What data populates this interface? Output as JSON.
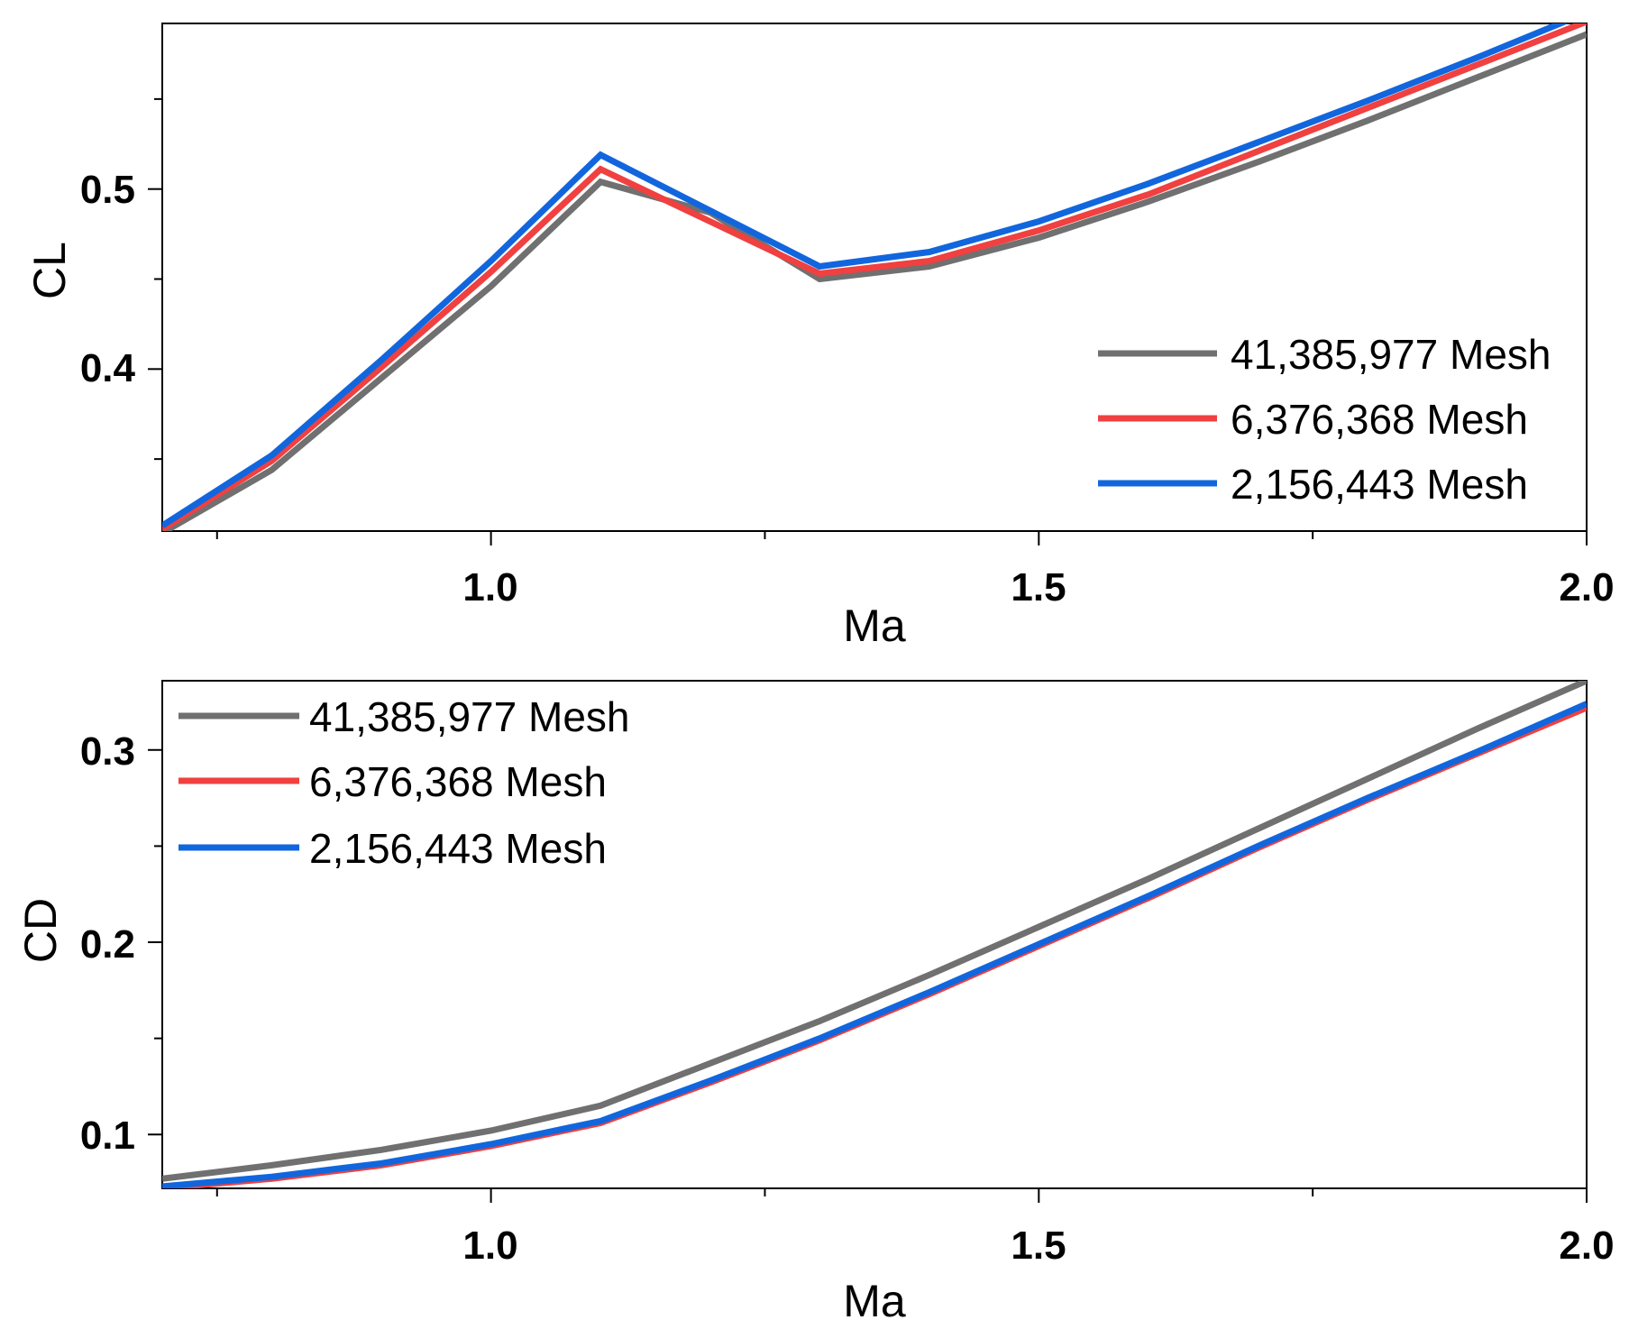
{
  "chart_data": [
    {
      "type": "line",
      "xlabel": "Ma",
      "ylabel": "CL",
      "xlim": [
        0.7,
        2.0
      ],
      "ylim": [
        0.31,
        0.592
      ],
      "x_ticks_major": [
        1.0,
        1.5,
        2.0
      ],
      "x_tick_labels": [
        "1.0",
        "1.5",
        "2.0"
      ],
      "x_ticks_minor": [
        0.75,
        1.25,
        1.75
      ],
      "y_ticks_major": [
        0.4,
        0.5
      ],
      "y_tick_labels": [
        "0.4",
        "0.5"
      ],
      "y_ticks_minor": [
        0.35,
        0.45,
        0.55
      ],
      "legend_position": "bottom-right",
      "grid": false,
      "x": [
        0.7,
        0.8,
        0.9,
        1.0,
        1.1,
        1.2,
        1.3,
        1.4,
        1.5,
        1.6,
        1.7,
        1.8,
        1.9,
        2.0
      ],
      "series": [
        {
          "name": "41,385,977 Mesh",
          "color": "#707070",
          "values": [
            0.309,
            0.344,
            0.395,
            0.446,
            0.504,
            0.487,
            0.45,
            0.457,
            0.473,
            0.493,
            0.515,
            0.538,
            0.562,
            0.586
          ]
        },
        {
          "name": "6,376,368 Mesh",
          "color": "#f04040",
          "values": [
            0.311,
            0.349,
            0.401,
            0.454,
            0.511,
            0.482,
            0.453,
            0.46,
            0.477,
            0.497,
            0.521,
            0.545,
            0.569,
            0.593
          ]
        },
        {
          "name": "2,156,443 Mesh",
          "color": "#1166dd",
          "values": [
            0.313,
            0.352,
            0.405,
            0.46,
            0.519,
            0.488,
            0.457,
            0.465,
            0.482,
            0.503,
            0.526,
            0.549,
            0.573,
            0.598
          ]
        }
      ]
    },
    {
      "type": "line",
      "xlabel": "Ma",
      "ylabel": "CD",
      "xlim": [
        0.7,
        2.0
      ],
      "ylim": [
        0.072,
        0.336
      ],
      "x_ticks_major": [
        1.0,
        1.5,
        2.0
      ],
      "x_tick_labels": [
        "1.0",
        "1.5",
        "2.0"
      ],
      "x_ticks_minor": [
        0.75,
        1.25,
        1.75
      ],
      "y_ticks_major": [
        0.1,
        0.2,
        0.3
      ],
      "y_tick_labels": [
        "0.1",
        "0.2",
        "0.3"
      ],
      "y_ticks_minor": [
        0.15,
        0.25
      ],
      "legend_position": "top-left",
      "grid": false,
      "x": [
        0.7,
        0.8,
        0.9,
        1.0,
        1.1,
        1.2,
        1.3,
        1.4,
        1.5,
        1.6,
        1.7,
        1.8,
        1.9,
        2.0
      ],
      "series": [
        {
          "name": "41,385,977 Mesh",
          "color": "#707070",
          "values": [
            0.077,
            0.084,
            0.092,
            0.102,
            0.115,
            0.137,
            0.159,
            0.183,
            0.208,
            0.233,
            0.259,
            0.285,
            0.311,
            0.336
          ]
        },
        {
          "name": "6,376,368 Mesh",
          "color": "#f04040",
          "values": [
            0.072,
            0.077,
            0.084,
            0.094,
            0.106,
            0.127,
            0.149,
            0.173,
            0.198,
            0.223,
            0.249,
            0.274,
            0.298,
            0.322
          ]
        },
        {
          "name": "2,156,443 Mesh",
          "color": "#1166dd",
          "values": [
            0.073,
            0.078,
            0.085,
            0.095,
            0.107,
            0.128,
            0.15,
            0.174,
            0.199,
            0.224,
            0.25,
            0.275,
            0.299,
            0.324
          ]
        }
      ]
    }
  ]
}
